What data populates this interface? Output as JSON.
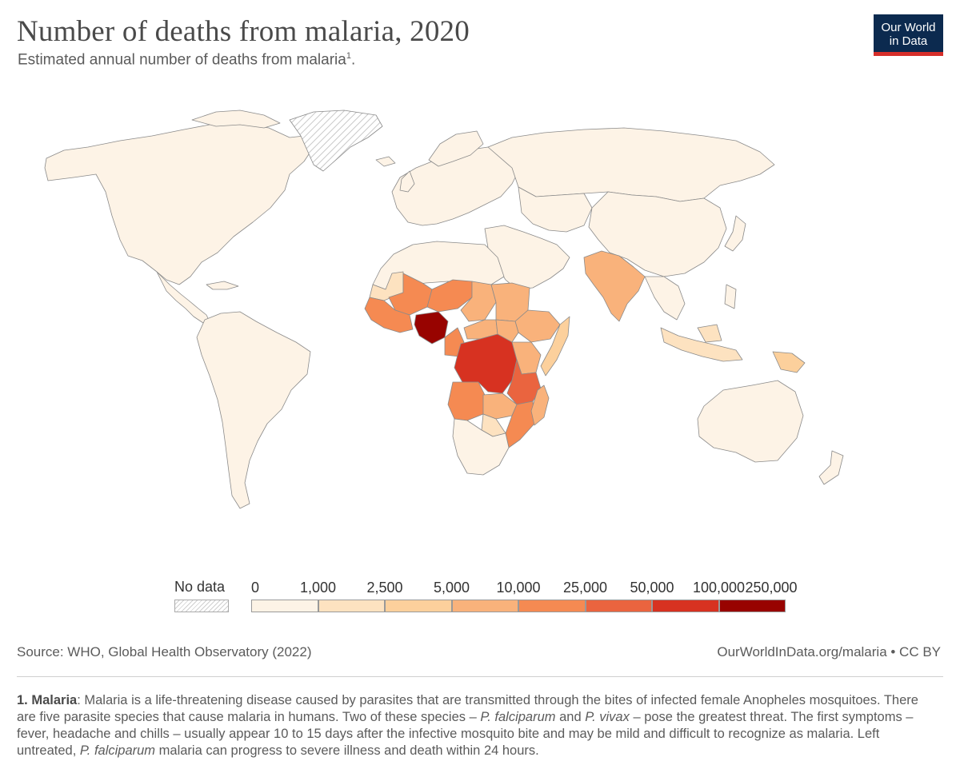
{
  "header": {
    "title": "Number of deaths from malaria, 2020",
    "subtitle": "Estimated annual number of deaths from malaria",
    "subtitle_ref": "1",
    "subtitle_end": ".",
    "logo_line1": "Our World",
    "logo_line2": "in Data"
  },
  "map_data": {
    "type": "choropleth",
    "metric": "Estimated annual deaths from malaria",
    "year": 2020,
    "no_data_regions": [
      "Greenland"
    ],
    "regions": [
      {
        "name": "Nigeria",
        "bin": 8
      },
      {
        "name": "Democratic Republic of Congo",
        "bin": 7
      },
      {
        "name": "Tanzania",
        "bin": 6
      },
      {
        "name": "Mozambique",
        "bin": 5
      },
      {
        "name": "Niger",
        "bin": 5
      },
      {
        "name": "Angola",
        "bin": 5
      },
      {
        "name": "Burkina Faso",
        "bin": 5
      },
      {
        "name": "Uganda",
        "bin": 5
      },
      {
        "name": "Cote d'Ivoire",
        "bin": 5
      },
      {
        "name": "Cameroon",
        "bin": 5
      },
      {
        "name": "Mali",
        "bin": 5
      },
      {
        "name": "Madagascar",
        "bin": 4
      },
      {
        "name": "India",
        "bin": 4
      },
      {
        "name": "Sudan",
        "bin": 4
      },
      {
        "name": "Ethiopia",
        "bin": 4
      },
      {
        "name": "Kenya",
        "bin": 4
      },
      {
        "name": "Chad",
        "bin": 4
      },
      {
        "name": "Malawi",
        "bin": 4
      },
      {
        "name": "Zambia",
        "bin": 4
      },
      {
        "name": "Central African Republic",
        "bin": 4
      },
      {
        "name": "South Sudan",
        "bin": 4
      },
      {
        "name": "Mauritania",
        "bin": 2
      },
      {
        "name": "Zimbabwe",
        "bin": 2
      },
      {
        "name": "Papua New Guinea",
        "bin": 2
      },
      {
        "name": "Indonesia",
        "bin": 2
      },
      {
        "name": "Somalia",
        "bin": 3
      }
    ]
  },
  "legend": {
    "no_data_label": "No data",
    "tick_labels": [
      "0",
      "1,000",
      "2,500",
      "5,000",
      "10,000",
      "25,000",
      "50,000",
      "100,000",
      "250,000"
    ],
    "colors": [
      "#fdf3e6",
      "#fde2c0",
      "#fcd09c",
      "#f9b27b",
      "#f58a52",
      "#ea643f",
      "#d73221",
      "#980300"
    ],
    "nodata_color": "#e6e6e6"
  },
  "footer": {
    "source": "Source: WHO, Global Health Observatory (2022)",
    "credit": "OurWorldInData.org/malaria • CC BY",
    "note_label": "1. Malaria",
    "note_text_1": ": Malaria is a life-threatening disease caused by parasites that are transmitted through the bites of infected female Anopheles mosquitoes. There are five parasite species that cause malaria in humans. Two of these species – ",
    "note_em_1": "P. falciparum",
    "note_text_2": " and ",
    "note_em_2": "P. vivax",
    "note_text_3": " – pose the greatest threat. The first symptoms – fever, headache and chills – usually appear 10 to 15 days after the infective mosquito bite and may be mild and difficult to recognize as malaria. Left untreated, ",
    "note_em_3": "P. falciparum",
    "note_text_4": " malaria can progress to severe illness and death within 24 hours."
  }
}
